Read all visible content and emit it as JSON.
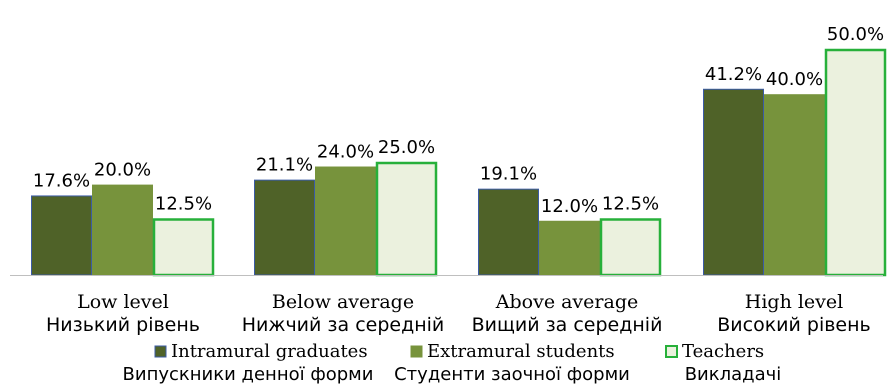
{
  "chart_data": {
    "type": "bar",
    "categories": [
      {
        "label": "Low level",
        "sublabel": "Низький рівень"
      },
      {
        "label": "Below average",
        "sublabel": "Нижчий за середній"
      },
      {
        "label": "Above average",
        "sublabel": "Вищий за середній"
      },
      {
        "label": "High level",
        "sublabel": "Високий рівень"
      }
    ],
    "series": [
      {
        "name": "Intramural graduates",
        "subname": "Випускники денної форми",
        "values": [
          17.6,
          21.1,
          19.1,
          41.2
        ],
        "labels": [
          "17.6%",
          "21.1%",
          "19.1%",
          "41.2%"
        ],
        "color": "#4f6228",
        "stroke": "#3b5ba5"
      },
      {
        "name": "Extramural students",
        "subname": "Студенти заочної форми",
        "values": [
          20.0,
          24.0,
          12.0,
          40.0
        ],
        "labels": [
          "20.0%",
          "24.0%",
          "12.0%",
          "40.0%"
        ],
        "color": "#77933c",
        "stroke": "#77933c"
      },
      {
        "name": "Teachers",
        "subname": "Викладачі",
        "values": [
          12.5,
          25.0,
          12.5,
          50.0
        ],
        "labels": [
          "12.5%",
          "25.0%",
          "12.5%",
          "50.0%"
        ],
        "color": "#ebf1de",
        "stroke": "#27b03a"
      }
    ],
    "ylim": [
      0,
      50
    ],
    "grid": false,
    "legend": "bottom",
    "title": "",
    "xlabel": "",
    "ylabel": ""
  }
}
